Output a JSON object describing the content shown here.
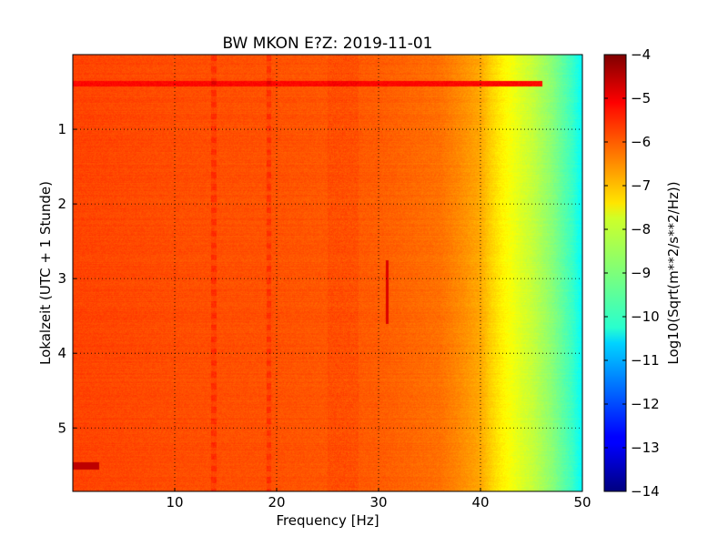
{
  "chart_data": {
    "type": "heatmap",
    "title": "BW MKON E?Z: 2019-11-01",
    "xlabel": "Frequency [Hz]",
    "ylabel": "Lokalzeit (UTC + 1 Stunde)",
    "colorbar_label": "Log10(Sqrt(m**2/s**2/Hz))",
    "xlim": [
      0,
      50
    ],
    "ylim": [
      5.85,
      0
    ],
    "y_inverted": true,
    "x_ticks": [
      10,
      20,
      30,
      40,
      50
    ],
    "x_tick_labels": [
      "10",
      "20",
      "30",
      "40",
      "50"
    ],
    "y_ticks": [
      1,
      2,
      3,
      4,
      5
    ],
    "y_tick_labels": [
      "1",
      "2",
      "3",
      "4",
      "5"
    ],
    "color_range": [
      -14,
      -4
    ],
    "colorbar_ticks": [
      -4,
      -5,
      -6,
      -7,
      -8,
      -9,
      -10,
      -11,
      -12,
      -13,
      -14
    ],
    "colorbar_tick_labels": [
      "−4",
      "−5",
      "−6",
      "−7",
      "−8",
      "−9",
      "−10",
      "−11",
      "−12",
      "−13",
      "−14"
    ],
    "colormap": "jet",
    "grid": true,
    "frequency_profile": {
      "freq_hz": [
        0,
        10,
        20,
        30,
        36,
        38,
        40,
        41,
        42,
        43,
        44,
        45,
        46,
        47,
        48,
        49,
        50
      ],
      "value": [
        -5.9,
        -6.0,
        -6.05,
        -6.15,
        -6.35,
        -6.6,
        -6.9,
        -7.3,
        -7.6,
        -7.85,
        -8.1,
        -8.3,
        -8.6,
        -8.9,
        -9.3,
        -9.7,
        -10.3
      ]
    },
    "features": {
      "horizontal_band": {
        "time": 0.38,
        "freq_range": [
          0,
          50
        ],
        "value": -5.3
      },
      "vertical_lines_hz": [
        13.8,
        19.2
      ],
      "vertical_bands_hz": [
        [
          25,
          28
        ]
      ],
      "short_line": {
        "freq_hz": 30.8,
        "time_range": [
          2.75,
          3.6
        ],
        "value": -4.9
      },
      "patch": {
        "freq_range": [
          0,
          2.5
        ],
        "time_range": [
          5.45,
          5.55
        ],
        "value": -4.6
      }
    }
  }
}
